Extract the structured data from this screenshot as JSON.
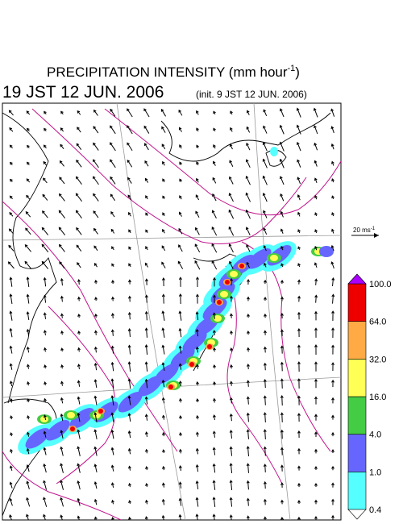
{
  "header": {
    "title_main": "PRECIPITATION INTENSITY (mm hour",
    "title_exp": "-1",
    "title_end": ")",
    "valid_time": "19 JST 12 JUN. 2006",
    "init_time": "(init. 9 JST 12 JUN. 2006)"
  },
  "wind_scale": {
    "label": "20 ms",
    "exp": "-1"
  },
  "legend": {
    "labels": [
      "0.4",
      "1.0",
      "4.0",
      "16.0",
      "32.0",
      "64.0",
      "100.0"
    ],
    "colors": [
      "#55ffff",
      "#6666ff",
      "#44cc44",
      "#ffff55",
      "#ffaa44",
      "#ee0000"
    ],
    "over_color": "#aa00ff",
    "under_color": "#ffffff"
  }
}
